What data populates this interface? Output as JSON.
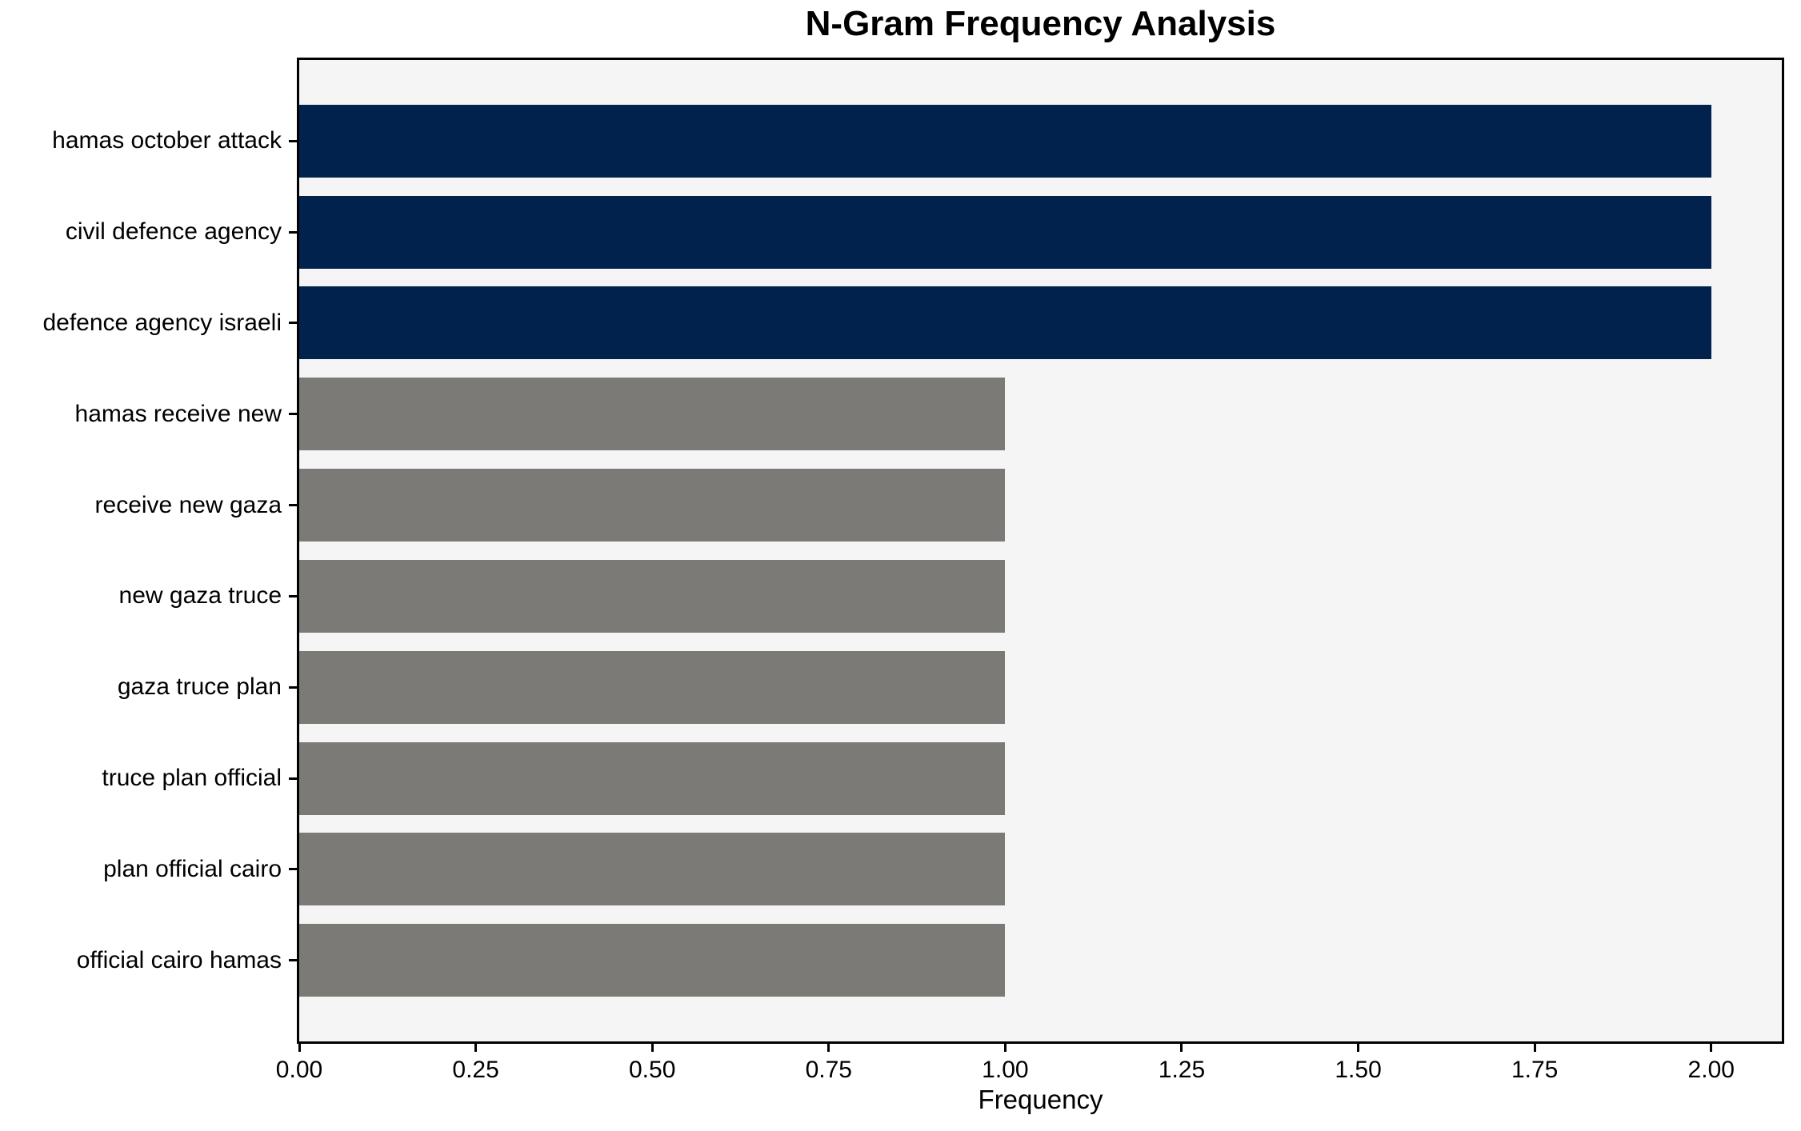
{
  "figure": {
    "background": "#ffffff"
  },
  "chart_data": {
    "type": "bar",
    "orientation": "horizontal",
    "title": "N-Gram Frequency Analysis",
    "xlabel": "Frequency",
    "ylabel": "",
    "categories": [
      "hamas october attack",
      "civil defence agency",
      "defence agency israeli",
      "hamas receive new",
      "receive new gaza",
      "new gaza truce",
      "gaza truce plan",
      "truce plan official",
      "plan official cairo",
      "official cairo hamas"
    ],
    "values": [
      2,
      2,
      2,
      1,
      1,
      1,
      1,
      1,
      1,
      1
    ],
    "bar_color_roles": [
      "highlight",
      "highlight",
      "highlight",
      "muted",
      "muted",
      "muted",
      "muted",
      "muted",
      "muted",
      "muted"
    ],
    "palette": {
      "highlight": "#01224d",
      "muted": "#7b7a77"
    },
    "plot_background": "#f5f5f5",
    "axis_color": "#000000",
    "xlim": [
      0,
      2.1
    ],
    "ylim": [
      -0.89,
      9.89
    ],
    "bar_thickness": 0.8,
    "xticks": [
      0,
      0.25,
      0.5,
      0.75,
      1.0,
      1.25,
      1.5,
      1.75,
      2.0
    ],
    "xtick_labels": [
      "0.00",
      "0.25",
      "0.50",
      "0.75",
      "1.00",
      "1.25",
      "1.50",
      "1.75",
      "2.00"
    ],
    "grid": false
  }
}
